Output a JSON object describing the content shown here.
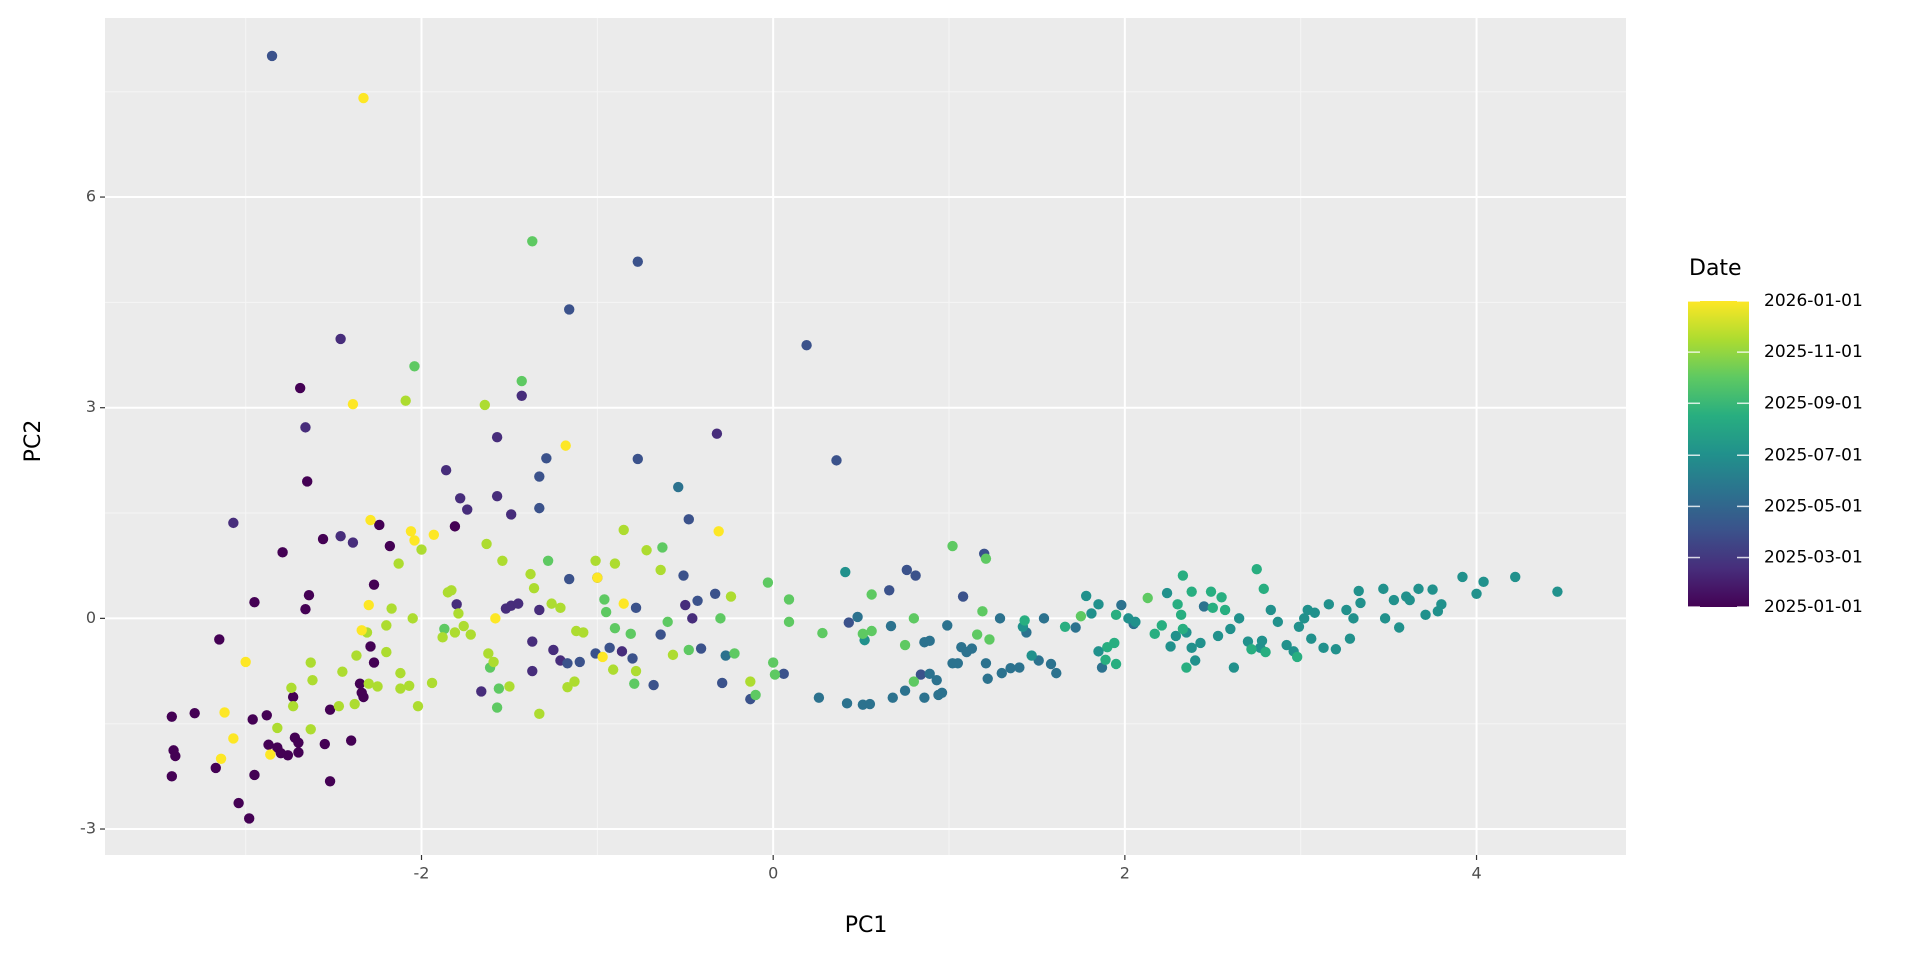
{
  "chart_data": {
    "type": "scatter",
    "x_label": "PC1",
    "y_label": "PC2",
    "xlim": [
      -3.8,
      4.85
    ],
    "ylim": [
      -3.37,
      8.55
    ],
    "xticks": [
      -2,
      0,
      2,
      4
    ],
    "yticks": [
      -3,
      0,
      3,
      6
    ],
    "xminor": [
      -3,
      -1,
      1,
      3
    ],
    "yminor": [
      -1.5,
      1.5,
      4.5,
      7.5
    ],
    "grid": true,
    "colorbar": {
      "title": "Date",
      "position": "right",
      "colors": [
        "#440154",
        "#472d7b",
        "#3b528b",
        "#2c728e",
        "#21918c",
        "#28ae80",
        "#5ec962",
        "#addc30",
        "#fde725"
      ],
      "ticks": [
        "2025-01-01",
        "2025-03-01",
        "2025-05-01",
        "2025-07-01",
        "2025-09-01",
        "2025-11-01",
        "2026-01-01"
      ]
    },
    "series": [
      {
        "color": "#440154",
        "x": [
          -3.42,
          -3.41,
          -3.4,
          -3.42,
          -3.29,
          -3.17,
          -3.15,
          -3.04,
          -2.98,
          -2.96,
          -2.95,
          -2.88,
          -2.87,
          -2.82,
          -2.8,
          -2.76,
          -2.72,
          -2.7,
          -2.7,
          -2.73,
          -2.55,
          -2.52,
          -2.52,
          -2.4,
          -2.34,
          -2.33,
          -2.35,
          -2.29,
          -2.27,
          -2.27,
          -2.69,
          -2.65,
          -2.24,
          -1.81,
          -2.56,
          -2.18,
          -2.79,
          -2.66,
          -2.64,
          -2.95
        ],
        "values": [
          -1.4,
          -1.88,
          -1.96,
          -2.25,
          -1.35,
          -2.13,
          -0.3,
          -2.63,
          -2.85,
          -1.44,
          -2.23,
          -1.38,
          -1.8,
          -1.84,
          -1.92,
          -1.95,
          -1.7,
          -1.77,
          -1.91,
          -1.12,
          -1.79,
          -1.3,
          -2.32,
          -1.74,
          -1.06,
          -1.12,
          -0.93,
          -0.4,
          -0.63,
          0.48,
          3.28,
          1.95,
          1.33,
          1.31,
          1.13,
          1.03,
          0.94,
          0.13,
          0.33,
          0.23
        ]
      },
      {
        "color": "#472d7b",
        "x": [
          -1.66,
          -1.37,
          -1.37,
          -1.25,
          -1.21,
          -0.86,
          -1.8,
          -1.52,
          -1.49,
          -1.45,
          -1.33,
          -0.5,
          -0.46,
          -2.46,
          -1.43,
          -2.66,
          -0.32,
          -1.57,
          -1.86,
          -1.78,
          -1.57,
          -1.74,
          -1.49,
          -3.07,
          -2.46,
          -2.39
        ],
        "values": [
          -1.04,
          -0.33,
          -0.75,
          -0.45,
          -0.6,
          -0.47,
          0.2,
          0.14,
          0.18,
          0.21,
          0.12,
          0.19,
          0.0,
          3.98,
          3.17,
          2.72,
          2.63,
          2.58,
          2.11,
          1.71,
          1.74,
          1.55,
          1.48,
          1.36,
          1.17,
          1.08
        ]
      },
      {
        "color": "#3b528b",
        "x": [
          -1.17,
          -1.1,
          -1.01,
          -0.93,
          -0.8,
          -0.68,
          -0.64,
          -0.41,
          -0.29,
          -0.13,
          0.06,
          0.84,
          -1.16,
          -0.78,
          -0.43,
          -0.33,
          0.43,
          0.66,
          0.76,
          0.81,
          1.08,
          -2.85,
          -0.77,
          -1.16,
          0.19,
          0.36,
          -0.77,
          -1.29,
          -1.33,
          -1.33,
          -0.48,
          1.2,
          -0.51,
          -1.0
        ],
        "values": [
          -0.64,
          -0.62,
          -0.5,
          -0.42,
          -0.57,
          -0.95,
          -0.23,
          -0.43,
          -0.92,
          -1.15,
          -0.79,
          -0.8,
          0.56,
          0.15,
          0.25,
          0.35,
          -0.06,
          0.4,
          0.69,
          0.61,
          0.31,
          8.01,
          5.08,
          4.4,
          3.89,
          2.25,
          2.27,
          2.28,
          2.02,
          1.57,
          1.41,
          0.92,
          0.61,
          0.58
        ]
      },
      {
        "color": "#2c728e",
        "x": [
          -0.27,
          0.26,
          0.42,
          0.51,
          0.55,
          0.68,
          0.75,
          0.86,
          0.89,
          0.94,
          0.96,
          0.93,
          0.48,
          0.67,
          0.86,
          0.89,
          0.99,
          1.02,
          1.05,
          1.07,
          1.1,
          1.13,
          1.21,
          1.22,
          1.29,
          1.3,
          1.35,
          1.4,
          1.44,
          1.51,
          1.54,
          1.58,
          1.61,
          1.72,
          1.87,
          1.98,
          2.05,
          2.45,
          -0.54
        ],
        "values": [
          -0.53,
          -1.13,
          -1.21,
          -1.23,
          -1.22,
          -1.13,
          -1.03,
          -1.13,
          -0.79,
          -1.09,
          -1.06,
          -0.88,
          0.02,
          -0.11,
          -0.34,
          -0.32,
          -0.1,
          -0.64,
          -0.64,
          -0.41,
          -0.48,
          -0.43,
          -0.64,
          -0.86,
          0.0,
          -0.78,
          -0.71,
          -0.7,
          -0.2,
          -0.6,
          0.0,
          -0.65,
          -0.78,
          -0.13,
          -0.7,
          0.19,
          -0.08,
          0.17,
          1.87
        ]
      },
      {
        "color": "#21918c",
        "x": [
          0.41,
          0.52,
          1.42,
          1.47,
          1.78,
          1.81,
          1.85,
          1.85,
          2.02,
          2.06,
          2.24,
          2.26,
          2.29,
          2.35,
          2.38,
          2.4,
          2.43,
          2.53,
          2.6,
          2.62,
          2.65,
          2.7,
          2.77,
          2.78,
          2.83,
          2.87,
          2.92,
          2.96,
          2.99,
          3.02,
          3.04,
          3.06,
          3.08,
          3.13,
          3.16,
          3.2,
          3.26,
          3.28,
          3.3,
          3.33,
          3.34,
          3.47,
          3.48,
          3.53,
          3.56,
          3.6,
          3.62,
          3.67,
          3.71,
          3.75,
          3.78,
          3.8,
          3.92,
          4.0,
          4.04,
          4.22,
          4.46
        ],
        "values": [
          0.66,
          -0.31,
          -0.12,
          -0.53,
          0.32,
          0.07,
          0.2,
          -0.47,
          0.0,
          -0.05,
          0.36,
          -0.4,
          -0.25,
          -0.2,
          -0.42,
          -0.6,
          -0.35,
          -0.25,
          -0.15,
          -0.7,
          0.0,
          -0.33,
          -0.42,
          -0.32,
          0.12,
          -0.05,
          -0.38,
          -0.47,
          -0.12,
          0.0,
          0.12,
          -0.29,
          0.08,
          -0.42,
          0.2,
          -0.44,
          0.12,
          -0.29,
          0.0,
          0.39,
          0.22,
          0.42,
          0.0,
          0.26,
          -0.13,
          0.31,
          0.26,
          0.42,
          0.05,
          0.41,
          0.1,
          0.2,
          0.59,
          0.35,
          0.52,
          0.59,
          0.38
        ]
      },
      {
        "color": "#28ae80",
        "x": [
          1.43,
          1.66,
          1.89,
          1.9,
          1.94,
          1.95,
          1.95,
          2.17,
          2.21,
          2.3,
          2.32,
          2.33,
          2.33,
          2.35,
          2.38,
          2.49,
          2.5,
          2.55,
          2.57,
          2.72,
          2.75,
          2.79,
          2.8,
          2.98
        ],
        "values": [
          -0.03,
          -0.12,
          -0.59,
          -0.41,
          -0.35,
          -0.65,
          0.05,
          -0.22,
          -0.1,
          0.2,
          0.05,
          0.61,
          -0.15,
          -0.7,
          0.38,
          0.38,
          0.15,
          0.3,
          0.12,
          -0.44,
          0.7,
          0.42,
          -0.48,
          -0.55
        ]
      },
      {
        "color": "#5ec962",
        "x": [
          -1.87,
          -1.61,
          -1.56,
          -1.57,
          -0.79,
          -0.48,
          -0.22,
          -0.1,
          0.0,
          0.01,
          0.8,
          -0.96,
          -0.95,
          -0.9,
          -0.81,
          -0.6,
          -0.3,
          -0.03,
          0.09,
          0.09,
          0.28,
          0.51,
          0.56,
          0.56,
          0.75,
          0.8,
          1.16,
          1.19,
          1.23,
          1.75,
          2.13,
          -1.37,
          -2.04,
          -1.43,
          1.02,
          1.21,
          -1.28,
          -0.63
        ],
        "values": [
          -0.15,
          -0.7,
          -1.0,
          -1.27,
          -0.93,
          -0.45,
          -0.5,
          -1.09,
          -0.63,
          -0.8,
          -0.9,
          0.27,
          0.09,
          -0.14,
          -0.22,
          -0.05,
          0.0,
          0.51,
          0.27,
          -0.05,
          -0.21,
          -0.22,
          -0.18,
          0.34,
          -0.38,
          0.0,
          -0.23,
          0.1,
          -0.3,
          0.03,
          0.29,
          5.37,
          3.59,
          3.38,
          1.03,
          0.85,
          0.82,
          1.01
        ]
      },
      {
        "color": "#addc30",
        "x": [
          -2.82,
          -2.74,
          -2.73,
          -2.63,
          -2.63,
          -2.62,
          -2.47,
          -2.45,
          -2.38,
          -2.37,
          -2.3,
          -2.25,
          -2.2,
          -2.31,
          -2.2,
          -2.12,
          -2.12,
          -2.07,
          -2.02,
          -1.94,
          -1.88,
          -1.81,
          -1.76,
          -1.79,
          -1.72,
          -1.62,
          -1.59,
          -1.5,
          -1.33,
          -1.17,
          -1.13,
          -1.12,
          -0.91,
          -0.78,
          -0.57,
          -0.13,
          -2.17,
          -2.05,
          -1.85,
          -1.83,
          -1.36,
          -1.26,
          -1.21,
          -1.08,
          -0.72,
          -0.24,
          -2.09,
          -1.64,
          -2.0,
          -1.63,
          -0.85,
          -2.13,
          -1.54,
          -1.01,
          -0.9,
          -0.64,
          -1.38
        ],
        "values": [
          -1.56,
          -0.99,
          -1.25,
          -1.58,
          -0.63,
          -0.88,
          -1.25,
          -0.76,
          -1.22,
          -0.53,
          -0.93,
          -0.97,
          -0.48,
          -0.2,
          -0.1,
          -0.78,
          -1.0,
          -0.96,
          -1.25,
          -0.92,
          -0.27,
          -0.2,
          -0.11,
          0.07,
          -0.23,
          -0.5,
          -0.62,
          -0.97,
          -1.36,
          -0.98,
          -0.9,
          -0.18,
          -0.73,
          -0.75,
          -0.52,
          -0.9,
          0.14,
          0.0,
          0.37,
          0.4,
          0.43,
          0.21,
          0.15,
          -0.2,
          0.97,
          0.31,
          3.1,
          3.04,
          0.98,
          1.06,
          1.26,
          0.78,
          0.82,
          0.82,
          0.78,
          0.69,
          0.63
        ]
      },
      {
        "color": "#fde725",
        "x": [
          -3.14,
          -3.12,
          -3.0,
          -3.07,
          -2.86,
          -2.34,
          -0.97,
          -2.3,
          -1.58,
          -1.0,
          -0.85,
          -2.33,
          -2.39,
          -1.18,
          -2.29,
          -2.06,
          -1.93,
          -0.31,
          -2.04
        ],
        "values": [
          -2.0,
          -1.34,
          -0.62,
          -1.71,
          -1.94,
          -0.17,
          -0.55,
          0.19,
          0.0,
          0.58,
          0.21,
          7.41,
          3.05,
          2.46,
          1.4,
          1.24,
          1.19,
          1.24,
          1.11
        ]
      }
    ]
  }
}
